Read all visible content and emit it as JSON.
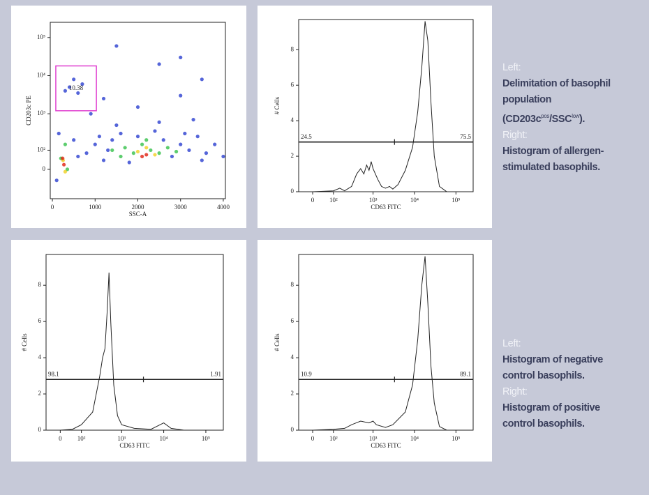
{
  "chart_data": [
    {
      "type": "scatter",
      "x_label": "SSC-A",
      "y_label": "CD203c PE",
      "xlim": [
        -50,
        4050
      ],
      "xticks": [
        0,
        1000,
        2000,
        3000,
        4000
      ],
      "y_scale": "biexponential",
      "ylim": [
        -200,
        250000
      ],
      "yticks": [
        0,
        {
          "value": 100,
          "label": "10²"
        },
        {
          "value": 1000,
          "label": "10³"
        },
        {
          "value": 10000,
          "label": "10⁴"
        },
        {
          "value": 100000,
          "label": "10⁵"
        }
      ],
      "series": [
        {
          "color": "#2a3fd0",
          "x": [
            800,
            1000,
            1200,
            1400,
            1600,
            1800,
            2000,
            2400,
            2600,
            2800,
            3000,
            3200,
            3400,
            3600,
            3800,
            4000,
            1100,
            1300,
            3100,
            3500,
            150,
            100,
            500,
            600,
            1500,
            2500,
            3300,
            2000,
            1200,
            3000,
            400,
            600,
            500,
            700,
            2500,
            3500,
            1500,
            3000,
            300,
            900
          ],
          "y": [
            80,
            150,
            40,
            200,
            300,
            30,
            250,
            350,
            200,
            60,
            150,
            100,
            250,
            80,
            150,
            60,
            250,
            100,
            300,
            40,
            300,
            -50,
            200,
            60,
            500,
            600,
            700,
            1500,
            2500,
            3000,
            5000,
            3500,
            8000,
            6000,
            20000,
            8000,
            60000,
            30000,
            4000,
            1000
          ]
        },
        {
          "color": "#35c04a",
          "x": [
            1700,
            1900,
            2100,
            2300,
            2500,
            2700,
            1600,
            2900,
            200,
            350,
            300,
            2200,
            1400
          ],
          "y": [
            120,
            80,
            150,
            100,
            80,
            120,
            60,
            90,
            50,
            0,
            150,
            200,
            100
          ]
        },
        {
          "color": "#f0d020",
          "x": [
            2000,
            2400,
            2200,
            250,
            300
          ],
          "y": [
            90,
            70,
            120,
            40,
            -10
          ]
        },
        {
          "color": "#e02010",
          "x": [
            2200,
            2100,
            270,
            240
          ],
          "y": [
            70,
            60,
            20,
            50
          ]
        }
      ],
      "gate": {
        "percent": 10.38,
        "color": "#e040d0",
        "xlim": [
          80,
          1030
        ],
        "ylim": [
          1200,
          18000
        ]
      }
    },
    {
      "type": "line",
      "x_label": "CD63 FITC",
      "y_label": "# Cells",
      "color": "#222222",
      "x_scale": "biexponential",
      "xlim": [
        -60,
        260000
      ],
      "xticks": [
        0,
        {
          "value": 100,
          "label": "10²"
        },
        {
          "value": 1000,
          "label": "10³"
        },
        {
          "value": 10000,
          "label": "10⁴"
        },
        {
          "value": 100000,
          "label": "10⁵"
        }
      ],
      "ylim": [
        0,
        9.7
      ],
      "yticks": [
        0,
        2,
        4,
        6,
        8
      ],
      "x": [
        -60,
        0,
        100,
        150,
        200,
        300,
        400,
        500,
        600,
        700,
        800,
        900,
        1000,
        1300,
        1600,
        2000,
        2500,
        3000,
        4000,
        6000,
        9000,
        12000,
        15000,
        18000,
        21000,
        25000,
        30000,
        40000,
        60000,
        260000
      ],
      "values": [
        0,
        0,
        0.05,
        0.2,
        0.05,
        0.3,
        1.0,
        1.3,
        1.0,
        1.5,
        1.2,
        1.7,
        1.3,
        0.7,
        0.3,
        0.2,
        0.3,
        0.15,
        0.4,
        1.2,
        2.5,
        4.5,
        7,
        9.6,
        8.5,
        5,
        2,
        0.3,
        0,
        0
      ],
      "marker": {
        "level": 2.8,
        "split": 3300,
        "left_percent": 24.5,
        "right_percent": 75.5
      }
    },
    {
      "type": "line",
      "x_label": "CD63 FITC",
      "y_label": "# Cells",
      "color": "#222222",
      "x_scale": "biexponential",
      "xlim": [
        -60,
        260000
      ],
      "xticks": [
        0,
        {
          "value": 100,
          "label": "10²"
        },
        {
          "value": 1000,
          "label": "10³"
        },
        {
          "value": 10000,
          "label": "10⁴"
        },
        {
          "value": 100000,
          "label": "10⁵"
        }
      ],
      "ylim": [
        0,
        9.7
      ],
      "yticks": [
        0,
        2,
        4,
        6,
        8
      ],
      "x": [
        -60,
        0,
        50,
        100,
        200,
        300,
        350,
        400,
        450,
        500,
        550,
        650,
        800,
        1000,
        2000,
        5000,
        10000,
        15000,
        30000,
        260000
      ],
      "values": [
        0,
        0,
        0.05,
        0.3,
        1.0,
        3,
        4,
        4.5,
        6.5,
        8.7,
        6,
        2.5,
        0.8,
        0.3,
        0.1,
        0.05,
        0.4,
        0.1,
        0,
        0
      ],
      "marker": {
        "level": 2.8,
        "split": 3300,
        "left_percent": 98.1,
        "right_percent": 1.91
      }
    },
    {
      "type": "line",
      "x_label": "CD63 FITC",
      "y_label": "# Cells",
      "color": "#222222",
      "x_scale": "biexponential",
      "xlim": [
        -60,
        260000
      ],
      "xticks": [
        0,
        {
          "value": 100,
          "label": "10²"
        },
        {
          "value": 1000,
          "label": "10³"
        },
        {
          "value": 10000,
          "label": "10⁴"
        },
        {
          "value": 100000,
          "label": "10⁵"
        }
      ],
      "ylim": [
        0,
        9.7
      ],
      "yticks": [
        0,
        2,
        4,
        6,
        8
      ],
      "x": [
        -60,
        0,
        100,
        200,
        300,
        500,
        800,
        1000,
        1200,
        2000,
        3000,
        6000,
        9000,
        12000,
        15000,
        18000,
        21000,
        25000,
        30000,
        40000,
        60000,
        260000
      ],
      "values": [
        0,
        0,
        0.05,
        0.1,
        0.3,
        0.5,
        0.4,
        0.5,
        0.3,
        0.15,
        0.3,
        1.0,
        2.5,
        5,
        8,
        9.6,
        7,
        3.5,
        1.5,
        0.2,
        0,
        0
      ],
      "marker": {
        "level": 2.8,
        "split": 3300,
        "left_percent": 10.9,
        "right_percent": 89.1
      }
    }
  ],
  "captions": [
    {
      "left_heading": "Left:",
      "left_text": [
        "Delimitation of basophil population (CD203c",
        "pos",
        "/SSC",
        "low",
        ")."
      ],
      "right_heading": "Right:",
      "right_text": "Histogram of allergen-stimulated basophils."
    },
    {
      "left_heading": "Left:",
      "left_text": "Histogram of negative control basophils.",
      "right_heading": "Right:",
      "right_text": "Histogram of positive control basophils."
    }
  ]
}
